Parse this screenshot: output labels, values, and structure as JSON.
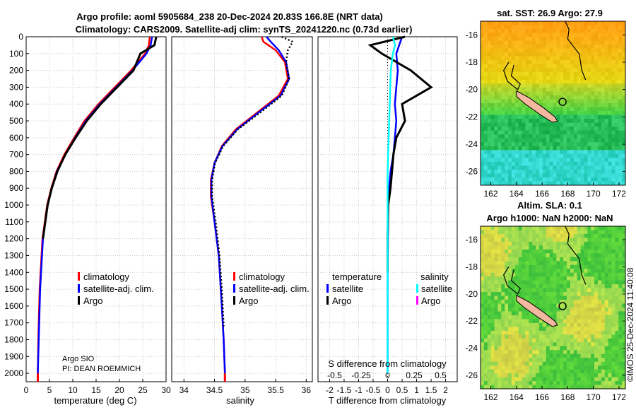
{
  "header": {
    "title_line1": "Argo profile: aoml 5905684_238 20-Dec-2024 20.83S 166.8E (NRT data)",
    "title_line2": "Climatology: CARS2009. Satellite-adj clim: synTS_20241220.nc (0.73d earlier)"
  },
  "depth_ticks": [
    "0",
    "100",
    "200",
    "300",
    "400",
    "500",
    "600",
    "700",
    "800",
    "900",
    "1000",
    "1100",
    "1200",
    "1300",
    "1400",
    "1500",
    "1600",
    "1700",
    "1800",
    "1900",
    "2000"
  ],
  "panels": {
    "temperature": {
      "xlabel": "temperature (deg C)",
      "xticks": [
        "0",
        "5",
        "10",
        "15",
        "20",
        "25",
        "30"
      ],
      "legend": [
        "climatology",
        "satellite-adj. clim.",
        "Argo"
      ],
      "credit1": "Argo SIO",
      "credit2": "PI: DEAN ROEMMICH"
    },
    "salinity": {
      "xlabel": "salinity",
      "xticks": [
        "34",
        "34.5",
        "35",
        "35.5",
        "36"
      ],
      "legend": [
        "climatology",
        "satellite-adj. clim.",
        "Argo"
      ]
    },
    "difference": {
      "xlabel": "T difference from climatology",
      "s_label": "S difference from climatology",
      "xticks": [
        "-2",
        "-1.5",
        "-1",
        "-0.5",
        "0",
        "0.5",
        "1",
        "1.5",
        "2"
      ],
      "xticks_shown": [
        "-2",
        "-1.5",
        "-1",
        "-0.5",
        "0",
        "0.5",
        "1",
        "1.5",
        "2"
      ],
      "s_ticks": [
        "-0.5",
        "-0.25",
        "0",
        "0.25",
        "0.5"
      ],
      "legend_temp_title": "temperature",
      "legend_sal_title": "salinity",
      "legend_temp": [
        "satellite",
        "Argo"
      ],
      "legend_sal": [
        "satellite",
        "Argo"
      ]
    }
  },
  "maps": {
    "sst_title": "sat. SST: 26.9 Argo: 27.9",
    "sla_title1": "Altim. SLA: 0.1",
    "sla_title2": "Argo h1000: NaN h2000: NaN",
    "lat_ticks": [
      "-16",
      "-18",
      "-20",
      "-22",
      "-24",
      "-26"
    ],
    "lon_ticks": [
      "162",
      "164",
      "166",
      "168",
      "170",
      "172"
    ]
  },
  "side_text": "©IMOS 25-Dec-2024 11:40:08",
  "colors": {
    "climatology": "#ff0000",
    "satellite": "#0000ff",
    "argo": "#000000",
    "sat_salinity": "#00ffff",
    "argo_salinity": "#ff00ff",
    "land": "#f4b8a0"
  },
  "chart_data": [
    {
      "type": "line",
      "title": "temperature profile",
      "xlabel": "temperature (deg C)",
      "ylabel": "depth",
      "xlim": [
        0,
        30
      ],
      "ylim": [
        2050,
        0
      ],
      "series": [
        {
          "name": "climatology",
          "x": [
            26.5,
            26.3,
            25.5,
            22.5,
            19.0,
            15.5,
            12.5,
            10.3,
            8.2,
            6.5,
            5.4,
            4.5,
            3.5,
            2.9,
            2.6,
            2.5
          ],
          "depth": [
            0,
            50,
            100,
            200,
            300,
            400,
            500,
            600,
            700,
            800,
            900,
            1000,
            1200,
            1500,
            1800,
            2000
          ]
        },
        {
          "name": "satellite-adj. clim.",
          "x": [
            27.0,
            26.7,
            25.8,
            22.8,
            19.3,
            15.8,
            12.8,
            10.5,
            8.4,
            6.6,
            5.5,
            4.6,
            3.6,
            3.0,
            2.7,
            2.5
          ],
          "depth": [
            0,
            50,
            100,
            200,
            300,
            400,
            500,
            600,
            700,
            800,
            900,
            1000,
            1200,
            1500,
            1800,
            2000
          ]
        },
        {
          "name": "Argo",
          "x": [
            27.9,
            27.5,
            24.5,
            23.0,
            19.5,
            16.0,
            13.0,
            10.6,
            8.4,
            6.7,
            5.5,
            4.6,
            3.6
          ],
          "depth": [
            0,
            50,
            100,
            200,
            300,
            400,
            500,
            600,
            700,
            800,
            900,
            1000,
            1200
          ]
        }
      ]
    },
    {
      "type": "line",
      "title": "salinity profile",
      "xlabel": "salinity",
      "ylabel": "depth",
      "xlim": [
        33.8,
        36.1
      ],
      "ylim": [
        2050,
        0
      ],
      "series": [
        {
          "name": "climatology",
          "x": [
            35.27,
            35.3,
            35.5,
            35.65,
            35.7,
            35.55,
            35.2,
            34.85,
            34.62,
            34.5,
            34.44,
            34.44,
            34.5,
            34.57,
            34.62,
            34.65,
            34.67
          ],
          "depth": [
            0,
            30,
            80,
            150,
            250,
            350,
            450,
            550,
            650,
            750,
            850,
            950,
            1100,
            1300,
            1600,
            1800,
            2000
          ]
        },
        {
          "name": "satellite-adj. clim.",
          "x": [
            35.35,
            35.42,
            35.55,
            35.67,
            35.72,
            35.58,
            35.22,
            34.87,
            34.63,
            34.5,
            34.45,
            34.45,
            34.5,
            34.57,
            34.62,
            34.65,
            34.67
          ],
          "depth": [
            0,
            30,
            80,
            150,
            250,
            350,
            450,
            550,
            650,
            750,
            850,
            950,
            1100,
            1300,
            1600,
            1800,
            2000
          ]
        },
        {
          "name": "Argo",
          "x": [
            35.6,
            35.78,
            35.7,
            35.67,
            35.72,
            35.6,
            35.25,
            34.88,
            34.64,
            34.51,
            34.46,
            34.46,
            34.52,
            34.58,
            34.62,
            34.65
          ],
          "depth": [
            0,
            30,
            80,
            150,
            250,
            350,
            450,
            550,
            650,
            750,
            850,
            950,
            1100,
            1300,
            1500,
            1720
          ]
        }
      ]
    },
    {
      "type": "line",
      "title": "difference from climatology",
      "xlabel": "T difference from climatology",
      "ylabel": "depth",
      "xlim": [
        -2.4,
        2.4
      ],
      "ylim": [
        2050,
        0
      ],
      "series": [
        {
          "name": "temperature satellite",
          "x": [
            0.5,
            0.4,
            0.3,
            0.35,
            0.3,
            0.25,
            0.3,
            0.25,
            0.2,
            0.1,
            0.05,
            0.02,
            0,
            0
          ],
          "depth": [
            0,
            50,
            100,
            200,
            300,
            400,
            500,
            600,
            700,
            800,
            900,
            1000,
            1500,
            2000
          ]
        },
        {
          "name": "temperature Argo",
          "x": [
            0.6,
            -0.6,
            -0.2,
            0.8,
            1.5,
            0.5,
            0.6,
            0.3,
            0.2,
            0.15,
            0.1,
            0.02,
            0,
            0
          ],
          "depth": [
            0,
            50,
            100,
            200,
            300,
            400,
            500,
            600,
            700,
            800,
            900,
            1000,
            1200,
            1400
          ]
        },
        {
          "name": "salinity satellite",
          "x": [
            0.05,
            0.07,
            0.05,
            0.03,
            0.02,
            0.01,
            0,
            0,
            0,
            0
          ],
          "depth": [
            0,
            50,
            100,
            200,
            400,
            600,
            800,
            1200,
            1600,
            2000
          ]
        },
        {
          "name": "salinity Argo",
          "x": [],
          "depth": []
        }
      ]
    }
  ]
}
